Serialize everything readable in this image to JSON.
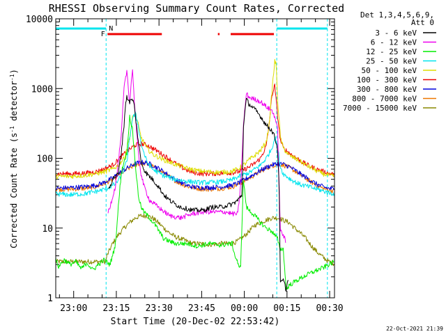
{
  "chart_data": {
    "type": "line",
    "title": "RHESSI Observing Summary Count Rates, Corrected",
    "xlabel": "Start Time (20-Dec-02 22:53:42)",
    "ylabel_parts": [
      "Corrected Count Rate (s",
      "-1",
      " detector",
      "-1",
      ")"
    ],
    "footer": "22-Oct-2021 21:39",
    "legend_header": [
      "Det 1,3,4,5,6,9,",
      "Att 0"
    ],
    "y_scale": "log",
    "ylim": [
      1,
      10000
    ],
    "xlim_minutes": [
      0,
      98
    ],
    "y_ticks": [
      {
        "v": 1,
        "label": "1"
      },
      {
        "v": 10,
        "label": "10"
      },
      {
        "v": 100,
        "label": "100"
      },
      {
        "v": 1000,
        "label": "1000"
      },
      {
        "v": 10000,
        "label": "10000"
      }
    ],
    "x_ticks": [
      {
        "t": 6.3,
        "label": "23:00"
      },
      {
        "t": 21.3,
        "label": "23:15"
      },
      {
        "t": 36.3,
        "label": "23:30"
      },
      {
        "t": 51.3,
        "label": "23:45"
      },
      {
        "t": 66.3,
        "label": "00:00"
      },
      {
        "t": 81.3,
        "label": "00:15"
      },
      {
        "t": 96.3,
        "label": "00:30"
      }
    ],
    "night_intervals": [
      [
        0,
        17.7
      ],
      [
        77.7,
        95.5
      ]
    ],
    "night_label": "N",
    "flare_label": "F",
    "flare_label_t": 16.6,
    "flare_intervals": [
      [
        18.2,
        37.3
      ],
      [
        57.0,
        57.6
      ],
      [
        61.5,
        76.7
      ]
    ],
    "night_color": "#00e5ee",
    "flare_color": "#ee0000",
    "series": [
      {
        "name": "3 - 6 keV",
        "color": "#000000",
        "t": [
          0,
          17.5,
          18.5,
          20,
          22,
          23,
          24,
          24.5,
          25,
          26,
          27,
          27.5,
          29,
          30,
          31,
          32,
          34,
          36,
          38,
          40,
          42,
          44,
          48,
          52,
          55,
          58,
          62,
          64,
          65.5,
          66,
          67,
          68,
          70,
          72,
          74,
          76,
          77,
          77.8,
          78,
          78.5,
          79,
          80,
          81,
          82,
          95,
          96,
          98
        ],
        "values": [
          null,
          null,
          35,
          50,
          60,
          120,
          300,
          600,
          750,
          650,
          700,
          600,
          180,
          90,
          70,
          60,
          50,
          40,
          30,
          25,
          22,
          20,
          18,
          18,
          20,
          20,
          22,
          25,
          30,
          300,
          700,
          600,
          500,
          400,
          300,
          250,
          200,
          150,
          120,
          50,
          1.6,
          1.8,
          1.3,
          2.1,
          null,
          null,
          null
        ]
      },
      {
        "name": "6 - 12 keV",
        "color": "#ee00ee",
        "t": [
          0,
          17.5,
          18.2,
          19,
          21,
          23,
          24,
          25,
          26,
          26.5,
          27,
          27.5,
          28,
          29,
          30,
          31,
          33,
          36,
          40,
          44,
          48,
          52,
          56,
          60,
          62,
          64,
          65,
          66,
          67,
          68,
          70,
          72,
          74,
          76,
          77,
          78,
          79,
          80,
          81,
          82,
          95,
          98
        ],
        "values": [
          null,
          null,
          16,
          20,
          40,
          200,
          1000,
          1800,
          600,
          1200,
          1900,
          800,
          400,
          120,
          60,
          40,
          25,
          20,
          15,
          14,
          16,
          17,
          17,
          17,
          16,
          16,
          40,
          300,
          850,
          750,
          700,
          650,
          550,
          480,
          400,
          250,
          9,
          8,
          6,
          null,
          null,
          null
        ]
      },
      {
        "name": "12 - 25 keV",
        "color": "#00ee00",
        "t": [
          0,
          1,
          3,
          5,
          7,
          9,
          11,
          13,
          15,
          17,
          19,
          20,
          21,
          22,
          23,
          24,
          25,
          26,
          27,
          28,
          29,
          30,
          31,
          33,
          35,
          38,
          42,
          46,
          50,
          54,
          58,
          62,
          63,
          64,
          64.5,
          65,
          66,
          67,
          68,
          70,
          72,
          74,
          76,
          78,
          78.5,
          79,
          80,
          81,
          82,
          84,
          86,
          88,
          90,
          92,
          94,
          96,
          98
        ],
        "values": [
          3.5,
          2.8,
          3.5,
          3.0,
          3.3,
          2.6,
          3.2,
          2.5,
          3.0,
          3.5,
          3.0,
          4.0,
          6.0,
          20,
          60,
          90,
          120,
          400,
          250,
          80,
          30,
          20,
          17,
          14,
          11,
          7,
          6,
          6.0,
          5.5,
          6.0,
          5.7,
          6.0,
          4.0,
          3.2,
          2.5,
          3.0,
          50,
          20,
          18,
          15,
          12,
          10,
          9,
          7,
          5.5,
          5,
          5,
          1.3,
          1.5,
          1.7,
          1.9,
          2.1,
          2.3,
          2.5,
          2.7,
          3.0,
          3.3
        ]
      },
      {
        "name": "25 - 50 keV",
        "color": "#00e5ee",
        "t": [
          0,
          5,
          10,
          15,
          18,
          21,
          23,
          25,
          26,
          27,
          28,
          29,
          30,
          32,
          34,
          38,
          42,
          46,
          50,
          54,
          58,
          62,
          64,
          66,
          68,
          70,
          72,
          74,
          76,
          77,
          78,
          79,
          80,
          82,
          84,
          86,
          88,
          90,
          92,
          94,
          96,
          98
        ],
        "values": [
          31,
          30,
          31,
          34,
          37,
          43,
          55,
          90,
          190,
          380,
          430,
          300,
          160,
          90,
          70,
          56,
          50,
          47,
          45,
          45,
          46,
          49,
          54,
          58,
          62,
          70,
          80,
          100,
          140,
          200,
          150,
          75,
          60,
          52,
          46,
          42,
          40,
          38,
          36,
          34,
          32,
          31
        ]
      },
      {
        "name": "50 - 100 keV",
        "color": "#dddd00",
        "t": [
          0,
          5,
          10,
          14,
          17,
          20,
          22,
          24,
          25,
          26,
          27,
          28,
          29,
          30,
          32,
          34,
          38,
          42,
          46,
          50,
          54,
          58,
          62,
          64,
          66,
          68,
          70,
          72,
          74,
          75,
          76,
          77,
          77.5,
          78,
          79,
          80,
          82,
          84,
          86,
          88,
          90,
          92,
          94,
          96,
          98
        ],
        "values": [
          55,
          55,
          57,
          60,
          64,
          70,
          80,
          100,
          140,
          200,
          380,
          450,
          300,
          200,
          140,
          115,
          95,
          82,
          72,
          66,
          64,
          63,
          65,
          70,
          80,
          95,
          110,
          130,
          170,
          300,
          900,
          2500,
          2200,
          700,
          200,
          140,
          110,
          100,
          90,
          80,
          72,
          65,
          60,
          57,
          55
        ]
      },
      {
        "name": "100 - 300 keV",
        "color": "#ee0000",
        "t": [
          0,
          5,
          10,
          14,
          17,
          20,
          22,
          24,
          26,
          28,
          30,
          32,
          34,
          36,
          38,
          40,
          42,
          44,
          46,
          48,
          50,
          52,
          54,
          58,
          62,
          64,
          66,
          68,
          70,
          72,
          74,
          75,
          76,
          77,
          78,
          79,
          80,
          82,
          84,
          86,
          88,
          90,
          92,
          94,
          96,
          98
        ],
        "values": [
          60,
          60,
          61,
          64,
          70,
          80,
          95,
          115,
          135,
          155,
          162,
          155,
          140,
          125,
          110,
          97,
          85,
          75,
          68,
          63,
          61,
          60,
          60,
          61,
          62,
          64,
          68,
          75,
          85,
          100,
          150,
          300,
          800,
          1100,
          400,
          180,
          140,
          120,
          105,
          92,
          82,
          75,
          69,
          65,
          61,
          58
        ]
      },
      {
        "name": "300 - 800 keV",
        "color": "#0000dd",
        "t": [
          0,
          5,
          10,
          14,
          17,
          20,
          22,
          24,
          26,
          28,
          30,
          32,
          34,
          36,
          38,
          40,
          42,
          44,
          46,
          48,
          50,
          52,
          54,
          58,
          62,
          64,
          66,
          68,
          70,
          72,
          74,
          76,
          78,
          80,
          82,
          84,
          86,
          88,
          90,
          92,
          94,
          96,
          98
        ],
        "values": [
          37,
          38,
          39,
          41,
          45,
          52,
          60,
          68,
          76,
          84,
          88,
          86,
          80,
          72,
          64,
          56,
          50,
          45,
          41,
          39,
          38,
          38,
          38,
          39,
          41,
          44,
          48,
          54,
          60,
          67,
          74,
          80,
          84,
          82,
          76,
          68,
          60,
          53,
          47,
          42,
          39,
          37,
          36
        ]
      },
      {
        "name": "800 - 7000 keV",
        "color": "#ee7700",
        "t": [
          0,
          5,
          10,
          14,
          17,
          20,
          22,
          24,
          26,
          28,
          30,
          32,
          34,
          36,
          38,
          40,
          42,
          44,
          46,
          48,
          50,
          52,
          54,
          58,
          62,
          64,
          66,
          68,
          70,
          72,
          74,
          76,
          78,
          80,
          82,
          84,
          86,
          88,
          90,
          92,
          94,
          96,
          98
        ],
        "values": [
          36,
          36,
          37,
          39,
          43,
          50,
          57,
          65,
          73,
          80,
          85,
          83,
          77,
          69,
          61,
          54,
          48,
          43,
          40,
          38,
          37,
          36,
          36,
          37,
          39,
          42,
          46,
          52,
          58,
          65,
          72,
          78,
          82,
          80,
          74,
          66,
          58,
          51,
          45,
          40,
          37,
          35,
          34
        ]
      },
      {
        "name": "7000 - 15000 keV",
        "color": "#888800",
        "t": [
          0,
          5,
          10,
          15,
          17.5,
          18,
          20,
          22,
          24,
          26,
          28,
          30,
          32,
          34,
          36,
          38,
          40,
          42,
          44,
          46,
          48,
          50,
          54,
          58,
          62,
          64,
          66,
          68,
          70,
          72,
          74,
          76,
          78,
          80,
          82,
          84,
          86,
          88,
          90,
          92,
          94,
          96,
          98
        ],
        "values": [
          3.3,
          3.3,
          3.3,
          3.3,
          3.3,
          4.0,
          6.0,
          8.0,
          10,
          12,
          14,
          15,
          15,
          14,
          12,
          10,
          8.5,
          7.5,
          7.0,
          6.5,
          6.0,
          6.0,
          5.8,
          6.0,
          6.0,
          6.5,
          7.5,
          9,
          11,
          12,
          13,
          14,
          14,
          13,
          12,
          10,
          8.5,
          7,
          5.5,
          4.5,
          3.8,
          3.3,
          3.1
        ]
      }
    ]
  }
}
